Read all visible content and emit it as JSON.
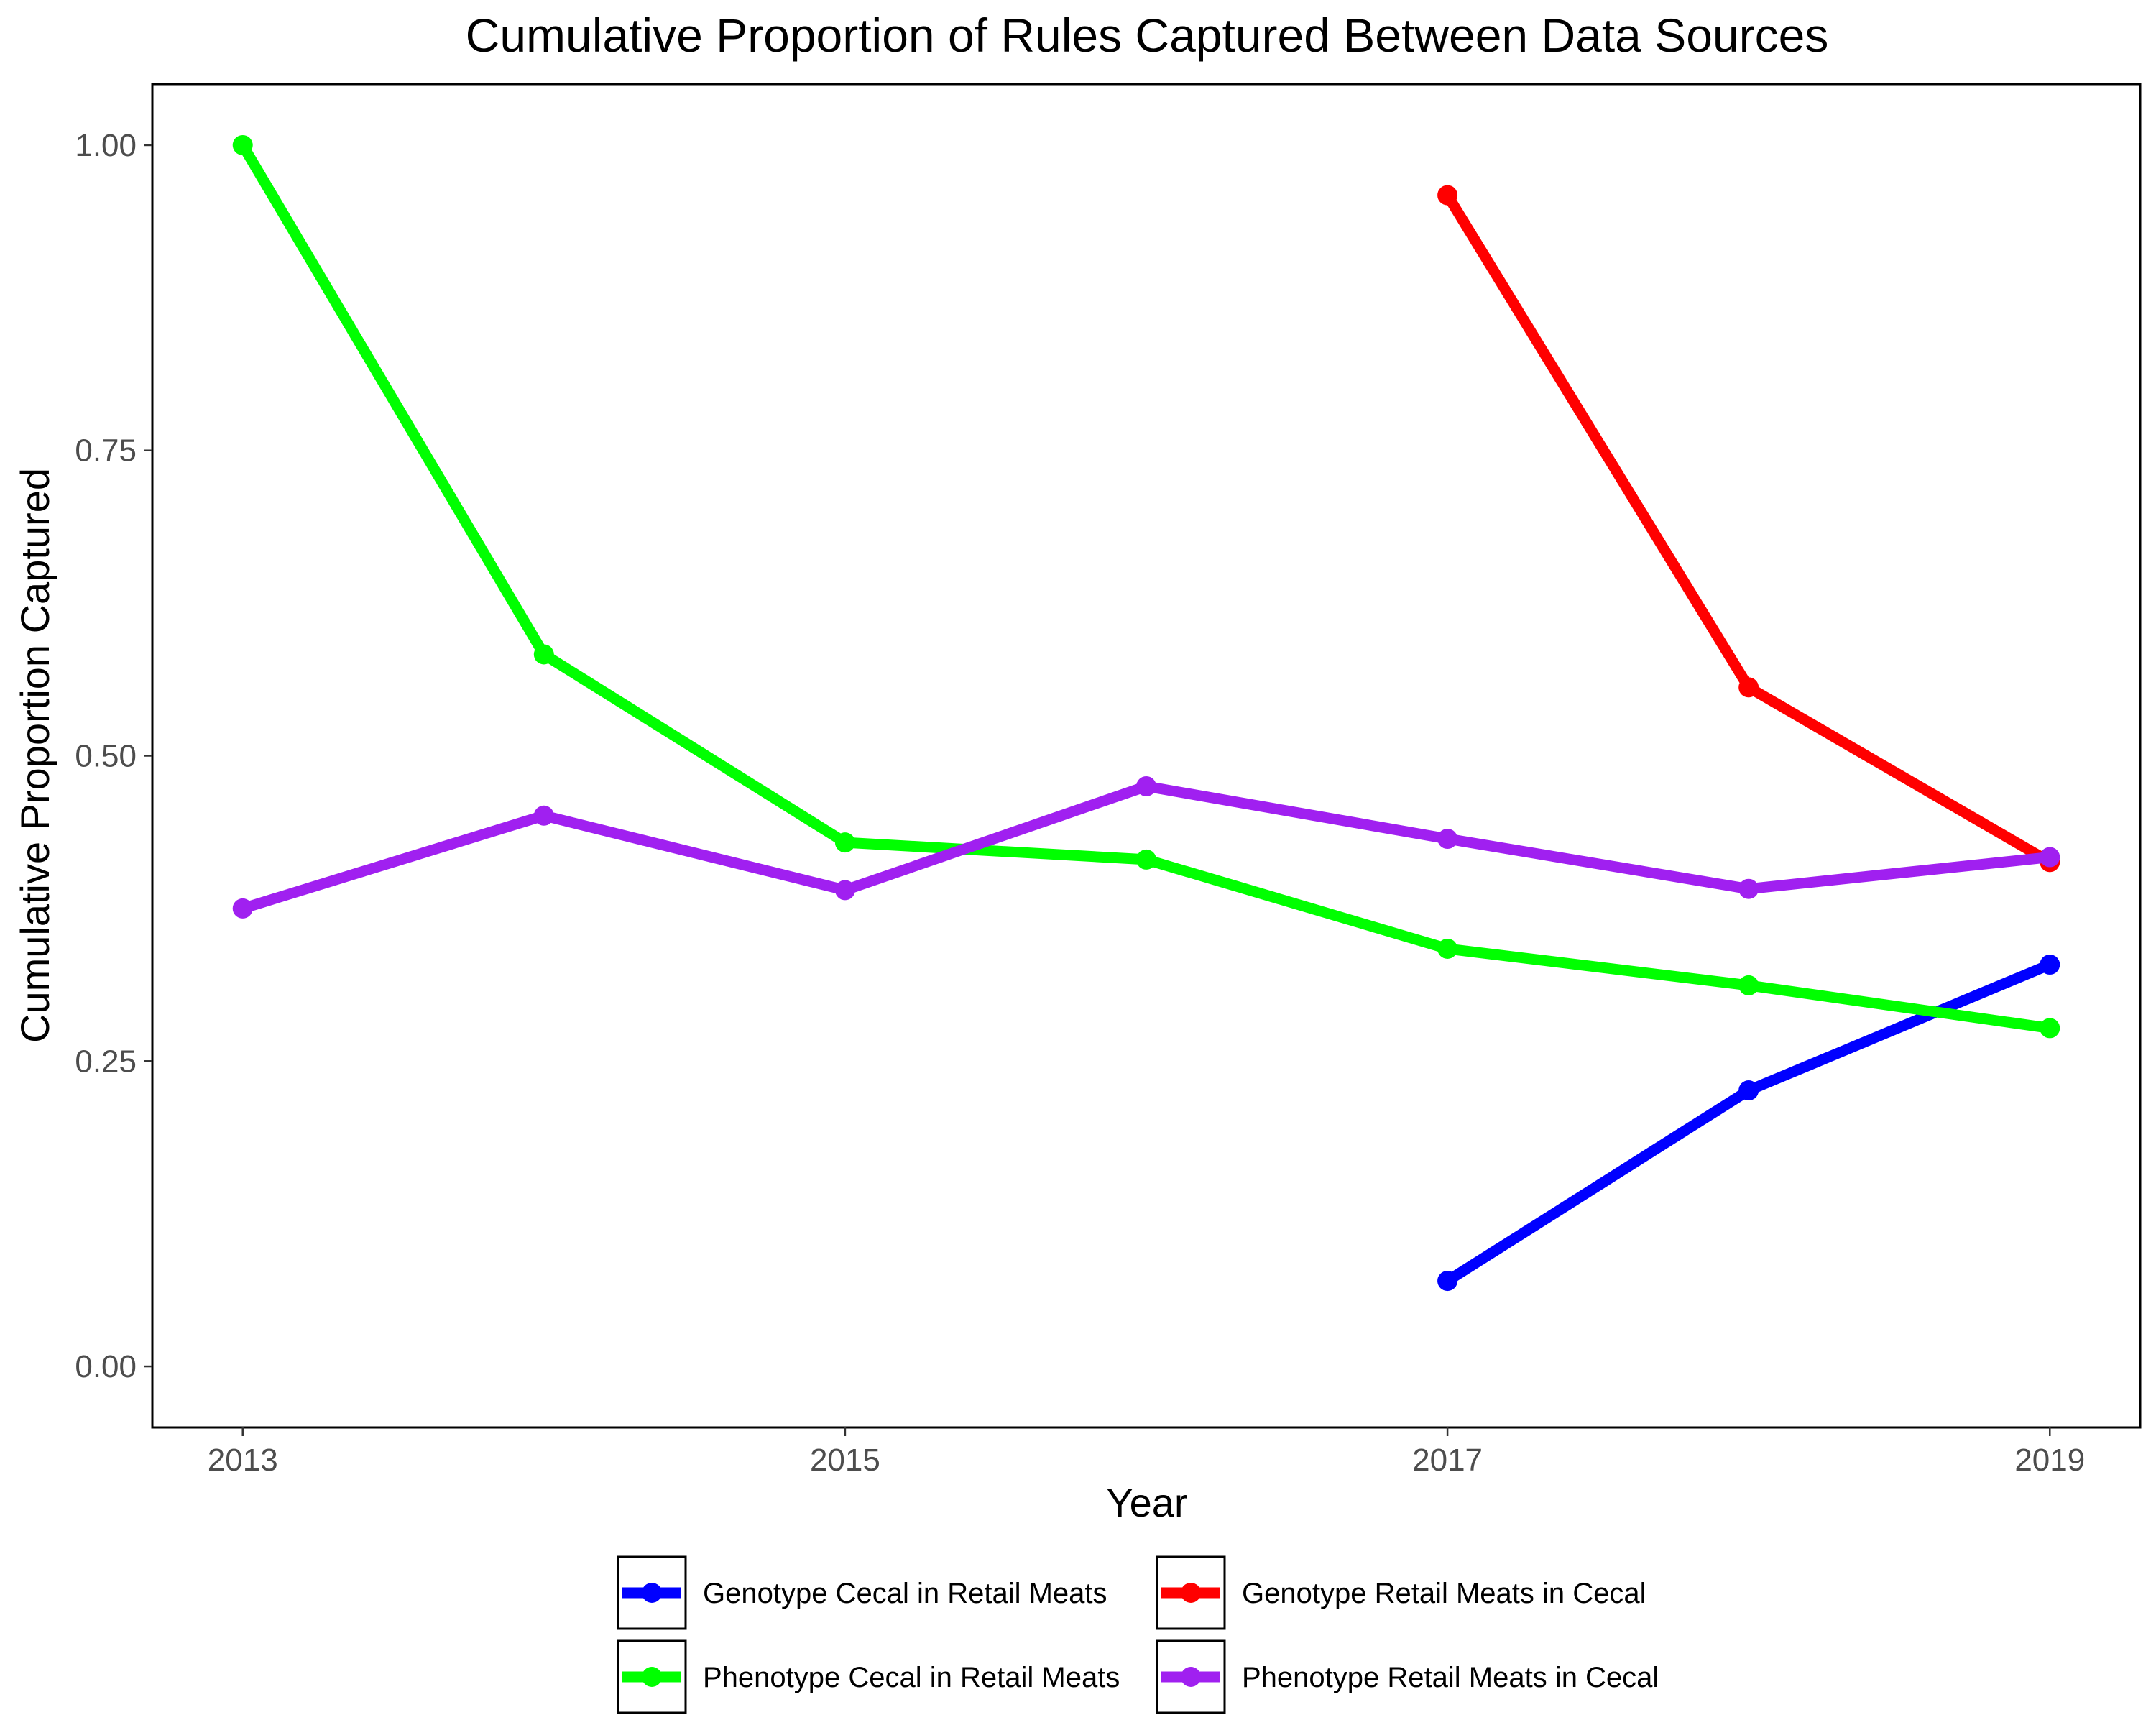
{
  "chart_data": {
    "type": "line",
    "title": "Cumulative Proportion of Rules Captured Between Data Sources",
    "xlabel": "Year",
    "ylabel": "Cumulative Proportion Captured",
    "xlim": [
      2012.7,
      2019.3
    ],
    "ylim": [
      -0.05,
      1.05
    ],
    "x_ticks": [
      2013,
      2015,
      2017,
      2019
    ],
    "x_tick_labels": [
      "2013",
      "2015",
      "2017",
      "2019"
    ],
    "y_ticks": [
      0,
      0.25,
      0.5,
      0.75,
      1
    ],
    "y_tick_labels": [
      "0.00",
      "0.25",
      "0.50",
      "0.75",
      "1.00"
    ],
    "grid": false,
    "legend_position": "bottom",
    "series": [
      {
        "name": "Genotype Cecal in Retail Meats",
        "color": "#0000ff",
        "x": [
          2017,
          2018,
          2019
        ],
        "values": [
          0.07,
          0.226,
          0.329
        ]
      },
      {
        "name": "Genotype Retail Meats in Cecal",
        "color": "#ff0000",
        "x": [
          2017,
          2018,
          2019
        ],
        "values": [
          0.959,
          0.556,
          0.413
        ]
      },
      {
        "name": "Phenotype Cecal in Retail Meats",
        "color": "#00ff00",
        "x": [
          2013,
          2014,
          2015,
          2016,
          2017,
          2018,
          2019
        ],
        "values": [
          1.0,
          0.583,
          0.429,
          0.415,
          0.342,
          0.312,
          0.277
        ]
      },
      {
        "name": "Phenotype Retail Meats in Cecal",
        "color": "#a020f0",
        "x": [
          2013,
          2014,
          2015,
          2016,
          2017,
          2018,
          2019
        ],
        "values": [
          0.375,
          0.451,
          0.39,
          0.475,
          0.432,
          0.391,
          0.417
        ]
      }
    ]
  }
}
